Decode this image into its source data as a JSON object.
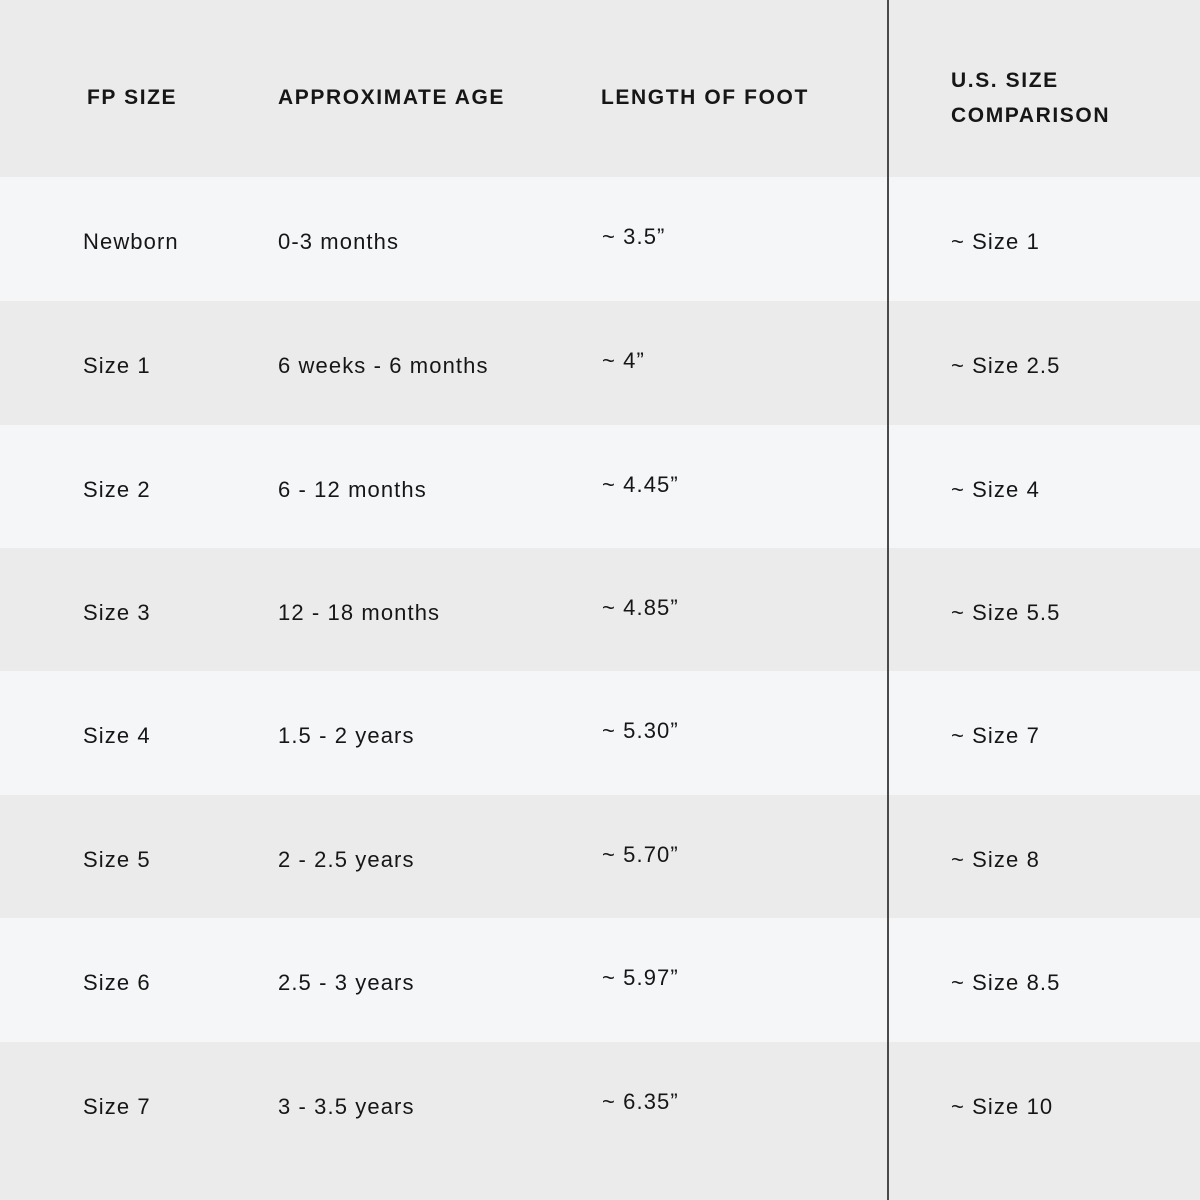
{
  "table": {
    "headers": [
      "FP SIZE",
      "APPROXIMATE AGE",
      "LENGTH OF FOOT",
      "U.S. SIZE",
      "COMPARISON"
    ],
    "rows": [
      [
        "Newborn",
        "0-3 months",
        "~ 3.5”",
        "~ Size 1"
      ],
      [
        "Size 1",
        "6 weeks - 6 months",
        "~ 4”",
        "~ Size 2.5"
      ],
      [
        "Size 2",
        "6 - 12 months",
        "~ 4.45”",
        "~ Size 4"
      ],
      [
        "Size 3",
        "12 - 18 months",
        "~ 4.85”",
        "~ Size 5.5"
      ],
      [
        "Size 4",
        "1.5 - 2 years",
        "~ 5.30”",
        "~ Size 7"
      ],
      [
        "Size 5",
        "2 - 2.5 years",
        "~ 5.70”",
        "~ Size 8"
      ],
      [
        "Size 6",
        "2.5 - 3 years",
        "~ 5.97”",
        "~ Size 8.5"
      ],
      [
        "Size 7",
        "3 - 3.5 years",
        "~ 6.35”",
        "~ Size 10"
      ]
    ]
  },
  "colors": {
    "header_bg": "#ebebeb",
    "row_light": "#f5f6f8",
    "row_dark": "#ebebeb",
    "divider": "#4a4a4a",
    "text": "#161616"
  }
}
